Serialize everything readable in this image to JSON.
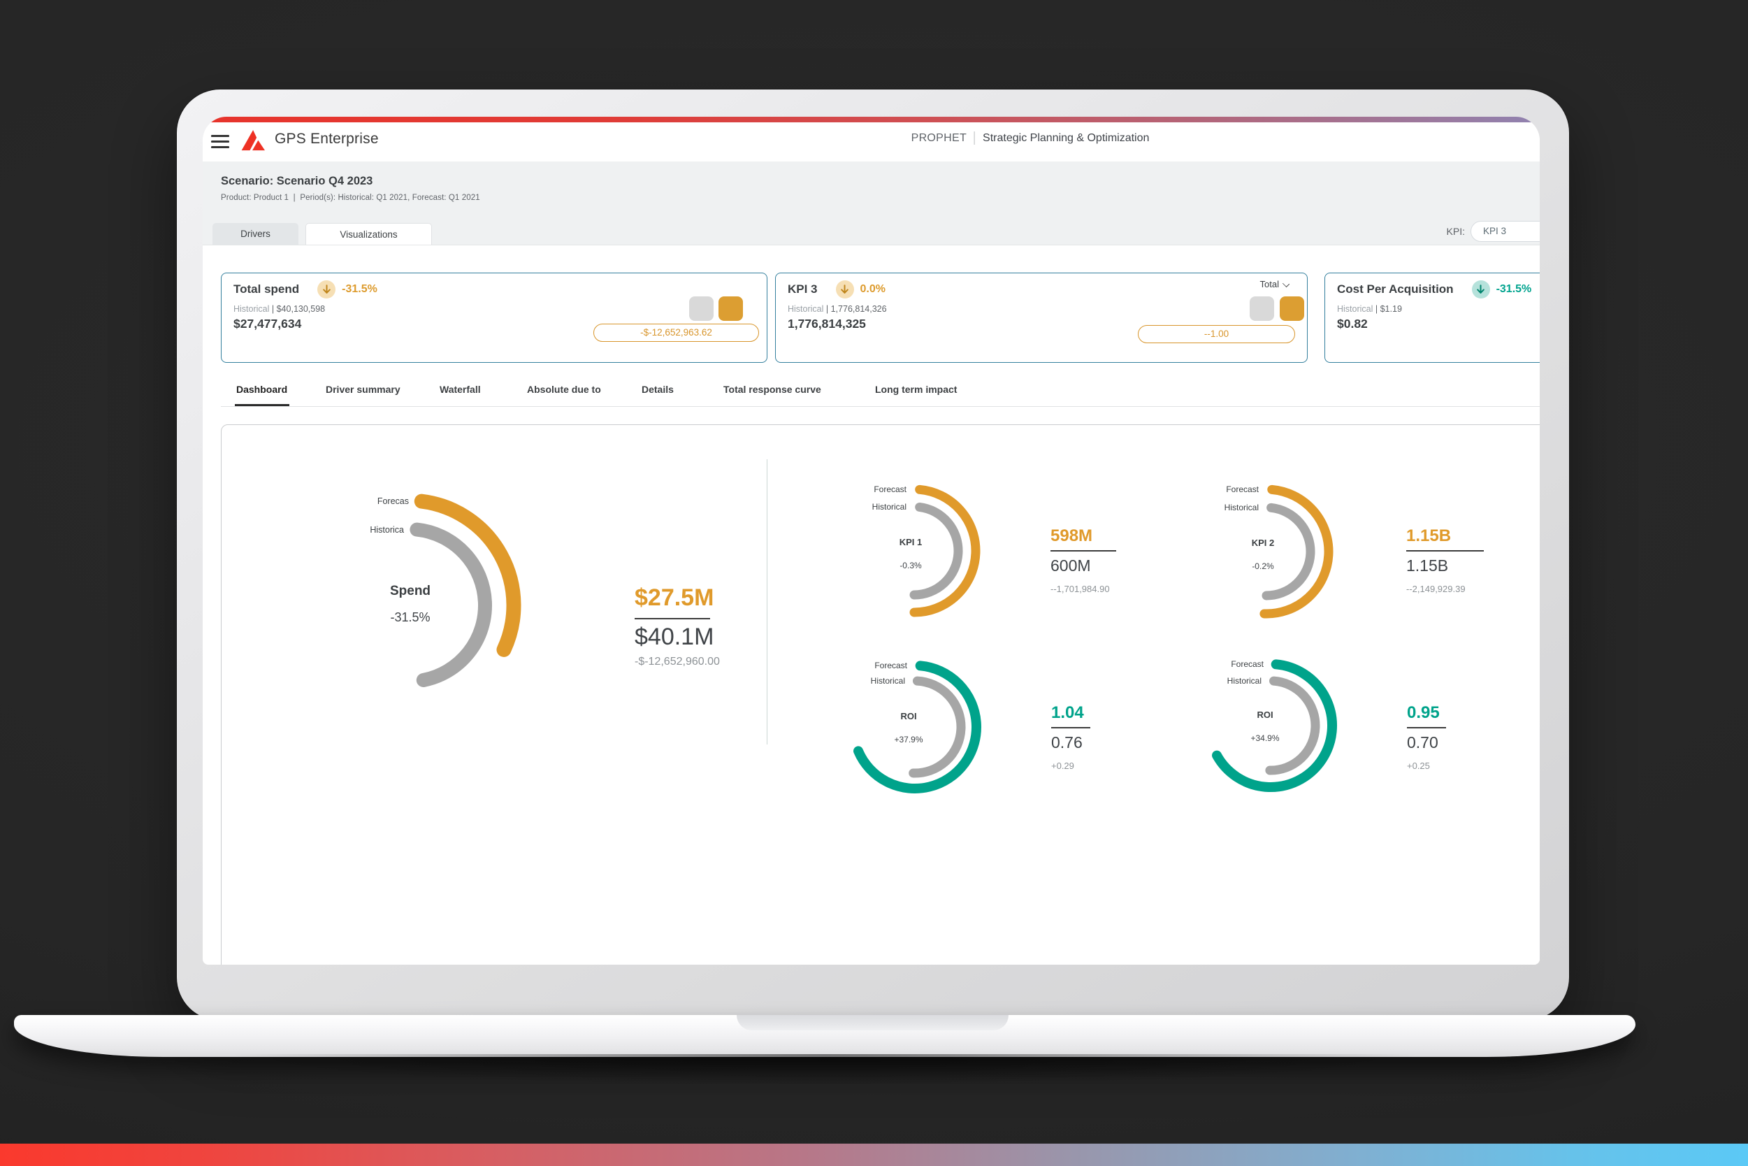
{
  "page": {
    "background": "#262626",
    "bottom_strip_gradient": [
      "#fb392c",
      "#5bc9f6"
    ],
    "device": "laptop-mockup"
  },
  "header": {
    "brand": "GPS Enterprise",
    "product_name": "PROPHET",
    "product_subtitle": "Strategic Planning & Optimization",
    "topbar_gradient": [
      "#e7342c",
      "#7b92cc"
    ]
  },
  "scenario": {
    "title": "Scenario: Scenario Q4 2023",
    "subtitle": "Product: Product 1  |  Period(s): Historical: Q1 2021, Forecast: Q1 2021",
    "tabs": [
      {
        "label": "Drivers",
        "active": false
      },
      {
        "label": "Visualizations",
        "active": true
      }
    ],
    "kpi_label": "KPI:",
    "kpi_value": "KPI 3"
  },
  "summary_cards": [
    {
      "title": "Total spend",
      "trend_direction": "down",
      "trend_pct": "-31.5%",
      "accent": "#dd9b2d",
      "historical_label": "Historical",
      "historical_sep": " | ",
      "historical_value": "$40,130,598",
      "value": "$27,477,634",
      "delta_pill": "-$-12,652,963.62"
    },
    {
      "title": "KPI 3",
      "trend_direction": "down",
      "trend_pct": "0.0%",
      "accent": "#dd9b2d",
      "historical_label": "Historical",
      "historical_sep": " | ",
      "historical_value": "1,776,814,326",
      "value": "1,776,814,325",
      "delta_pill": "--1.00",
      "dropdown_label": "Total"
    },
    {
      "title": "Cost Per Acquisition",
      "trend_direction": "down",
      "trend_pct": "-31.5%",
      "accent": "#00a38e",
      "historical_label": "Historical",
      "historical_sep": " | ",
      "historical_value": "$1.19",
      "value": "$0.82"
    }
  ],
  "view_tabs": {
    "active_index": 0,
    "items": [
      {
        "label": "Dashboard"
      },
      {
        "label": "Driver summary"
      },
      {
        "label": "Waterfall"
      },
      {
        "label": "Absolute due to"
      },
      {
        "label": "Details"
      },
      {
        "label": "Total response curve"
      },
      {
        "label": "Long term impact"
      }
    ]
  },
  "chart_data": [
    {
      "type": "gauge",
      "id": "spend",
      "title": "Spend",
      "change_pct": "-31.5%",
      "legend_forecast": "Forecas",
      "legend_historical": "Historica",
      "series": [
        {
          "name": "Forecast",
          "value": 27477634,
          "display": "$27.5M",
          "color": "#e09a2b"
        },
        {
          "name": "Historical",
          "value": 40130598,
          "display": "$40.1M",
          "color": "#a6a6a6"
        }
      ],
      "difference": "-$-12,652,960.00"
    },
    {
      "type": "gauge",
      "id": "kpi1",
      "title": "KPI 1",
      "change_pct": "-0.3%",
      "legend_forecast": "Forecast",
      "legend_historical": "Historical",
      "series": [
        {
          "name": "Forecast",
          "value": 598000000,
          "display": "598M",
          "color": "#e09a2b"
        },
        {
          "name": "Historical",
          "value": 600000000,
          "display": "600M",
          "color": "#a6a6a6"
        }
      ],
      "difference": "--1,701,984.90"
    },
    {
      "type": "gauge",
      "id": "kpi2",
      "title": "KPI 2",
      "change_pct": "-0.2%",
      "legend_forecast": "Forecast",
      "legend_historical": "Historical",
      "series": [
        {
          "name": "Forecast",
          "value": 1150000000,
          "display": "1.15B",
          "color": "#e09a2b"
        },
        {
          "name": "Historical",
          "value": 1150000000,
          "display": "1.15B",
          "color": "#a6a6a6"
        }
      ],
      "difference": "--2,149,929.39"
    },
    {
      "type": "gauge",
      "id": "roi1",
      "title": "ROI",
      "change_pct": "+37.9%",
      "legend_forecast": "Forecast",
      "legend_historical": "Historical",
      "series": [
        {
          "name": "Forecast",
          "value": 1.04,
          "display": "1.04",
          "color": "#00a38b"
        },
        {
          "name": "Historical",
          "value": 0.76,
          "display": "0.76",
          "color": "#a6a6a6"
        }
      ],
      "difference": "+0.29"
    },
    {
      "type": "gauge",
      "id": "roi2",
      "title": "ROI",
      "change_pct": "+34.9%",
      "legend_forecast": "Forecast",
      "legend_historical": "Historical",
      "series": [
        {
          "name": "Forecast",
          "value": 0.95,
          "display": "0.95",
          "color": "#00a38b"
        },
        {
          "name": "Historical",
          "value": 0.7,
          "display": "0.70",
          "color": "#a6a6a6"
        }
      ],
      "difference": "+0.25"
    }
  ]
}
